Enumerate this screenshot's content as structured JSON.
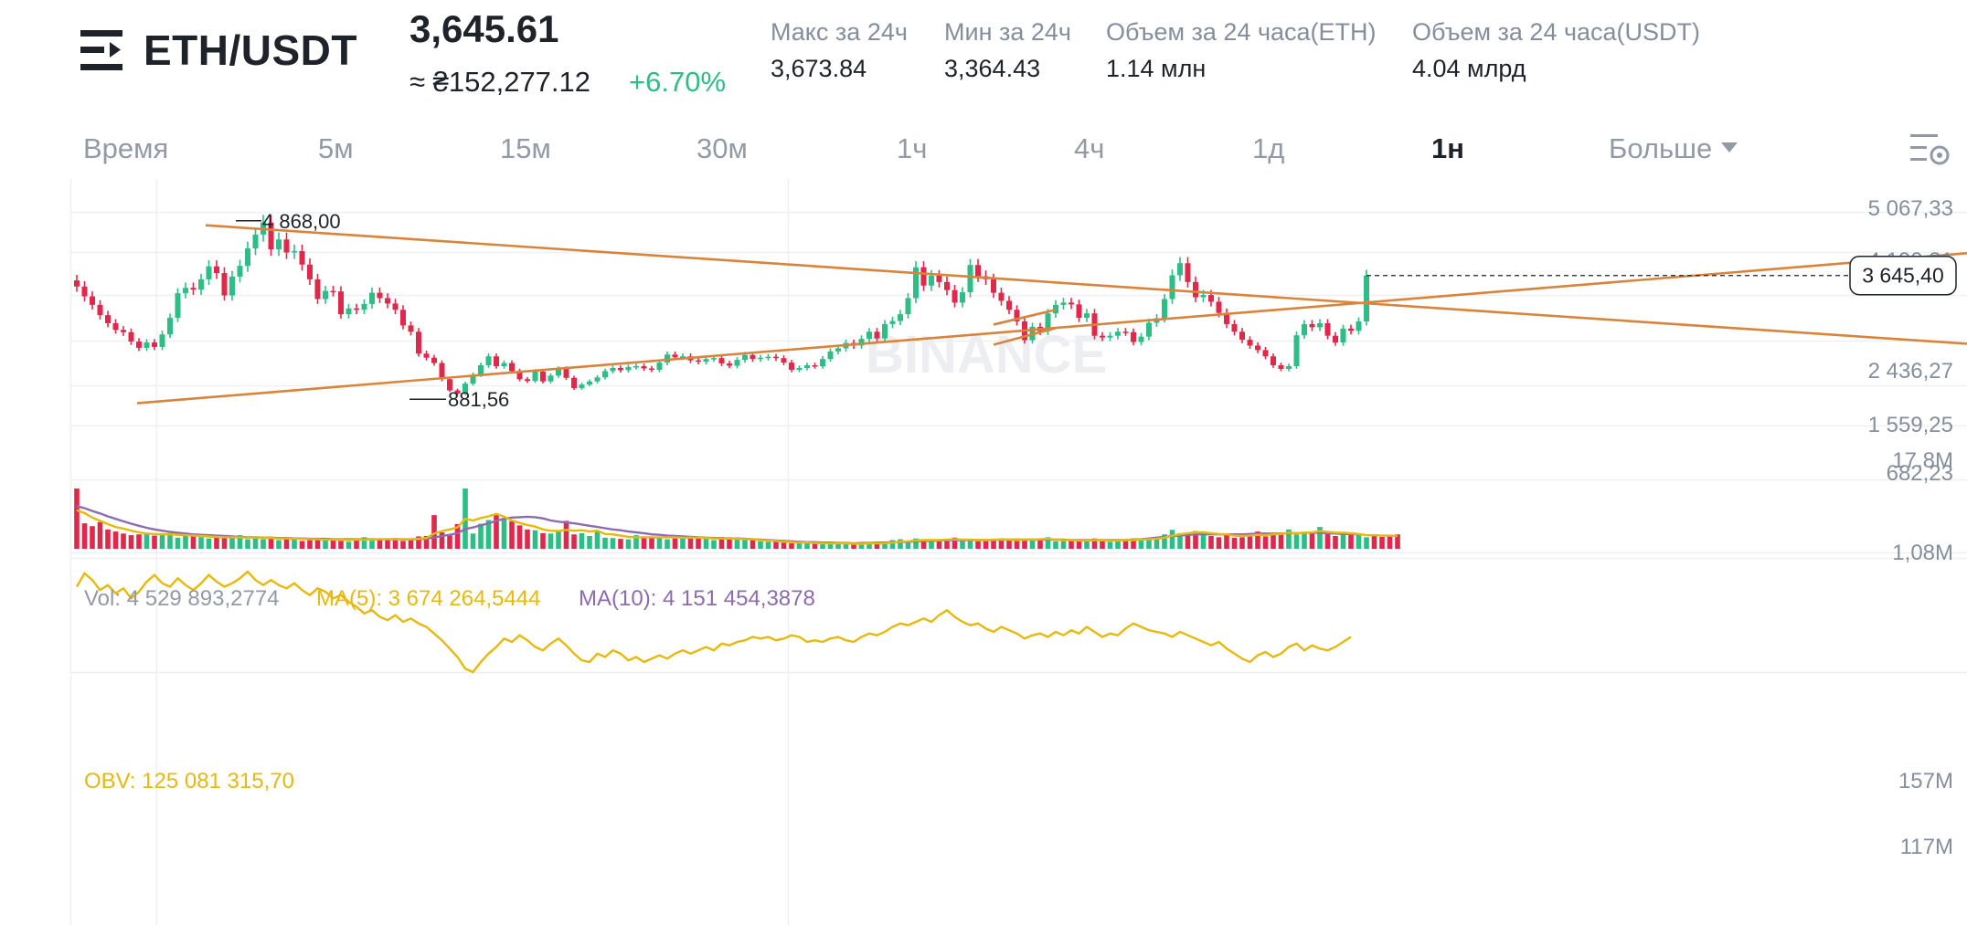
{
  "header": {
    "pair": "ETH/USDT",
    "price": "3,645.61",
    "approx_price": "≈ ₴152,277.12",
    "change": "+6.70%",
    "stats": [
      {
        "label": "Макс за 24ч",
        "value": "3,673.84"
      },
      {
        "label": "Мин за 24ч",
        "value": "3,364.43"
      },
      {
        "label": "Объем за 24 часа(ETH)",
        "value": "1.14 млн"
      },
      {
        "label": "Объем за 24 часа(USDT)",
        "value": "4.04 млрд"
      }
    ]
  },
  "timeframes": [
    "Время",
    "5м",
    "15м",
    "30м",
    "1ч",
    "4ч",
    "1д",
    "1н",
    "Больше"
  ],
  "active_timeframe": "1н",
  "colors": {
    "up": "#2ebd85",
    "down": "#e0294a",
    "trend": "#d9843b",
    "ma5": "#e6b90c",
    "ma10": "#8c6bb1",
    "obv": "#e6b90c"
  },
  "chart_data": [
    {
      "type": "candlestick",
      "title": "",
      "y_ticks": [
        "5 067,33",
        "4 190,31",
        "2 436,27",
        "1 559,25",
        "682,23"
      ],
      "ylim": [
        682.23,
        5067.33
      ],
      "current_price_label": "3 645,40",
      "annotations": [
        {
          "text": "4 868,00",
          "kind": "high"
        },
        {
          "text": "881,56",
          "kind": "low"
        }
      ],
      "watermark": "BINANCE",
      "trendlines": [
        {
          "name": "resistance",
          "points": [
            [
              8,
              4868
            ],
            [
              132,
              3420
            ]
          ]
        },
        {
          "name": "support",
          "points": [
            [
              0,
              682.23
            ],
            [
              132,
              2560
            ]
          ]
        },
        {
          "name": "channel-upper",
          "points": [
            [
              118,
              2550
            ],
            [
              126,
              2880
            ]
          ]
        },
        {
          "name": "channel-lower",
          "points": [
            [
              118,
              2100
            ],
            [
              126,
              2470
            ]
          ]
        }
      ],
      "closes": [
        3400,
        3180,
        2990,
        2760,
        2580,
        2430,
        2380,
        2170,
        2030,
        2150,
        2050,
        2330,
        2700,
        3250,
        3370,
        3330,
        3560,
        3850,
        3700,
        3200,
        3620,
        3860,
        4250,
        4560,
        4830,
        4230,
        4450,
        4160,
        4190,
        3890,
        3560,
        3120,
        3300,
        3290,
        2780,
        2910,
        2880,
        3010,
        3260,
        3140,
        3020,
        2880,
        2530,
        2390,
        1900,
        1810,
        1690,
        1330,
        1080,
        1010,
        1230,
        1430,
        1640,
        1840,
        1620,
        1690,
        1510,
        1330,
        1290,
        1500,
        1280,
        1410,
        1560,
        1360,
        1130,
        1210,
        1280,
        1370,
        1510,
        1580,
        1530,
        1600,
        1620,
        1570,
        1540,
        1700,
        1880,
        1820,
        1840,
        1750,
        1720,
        1780,
        1800,
        1680,
        1630,
        1760,
        1870,
        1780,
        1810,
        1830,
        1800,
        1700,
        1540,
        1580,
        1640,
        1620,
        1780,
        1950,
        2020,
        2140,
        2080,
        2230,
        2390,
        2240,
        2560,
        2630,
        2780,
        3140,
        3830,
        3420,
        3640,
        3500,
        3320,
        3040,
        3270,
        3880,
        3630,
        3560,
        3260,
        3080,
        2880,
        2620,
        2200,
        2500,
        2400,
        2800,
        2990,
        3040,
        3000,
        2700,
        2800,
        2300,
        2260,
        2300,
        2390,
        2380,
        2160,
        2280,
        2590,
        2690,
        3120,
        3650,
        3920,
        3500,
        3160,
        3210,
        3060,
        2810,
        2560,
        2390,
        2210,
        2080,
        1980,
        1840,
        1640,
        1560,
        1620,
        2310,
        2560,
        2490,
        2580,
        2300,
        2150,
        2460,
        2410,
        2620,
        3645.4
      ],
      "volume": {
        "ylim": [
          1.08,
          17.8
        ],
        "y_ticks": [
          "17,8M",
          "1,08M"
        ],
        "label": "Vol: 4 529 893,2774",
        "ma5_label": "MA(5): 3 674 264,5444",
        "ma10_label": "MA(10): 4 151 454,3878",
        "values": [
          15.8,
          7.3,
          6.6,
          7.6,
          5.8,
          5.3,
          4.8,
          4.4,
          4.6,
          4.9,
          4.3,
          4.6,
          4.9,
          3.8,
          4.2,
          4.1,
          3.9,
          3.6,
          3.8,
          3.9,
          4.2,
          4.4,
          3.4,
          3.6,
          3.4,
          3.6,
          3.2,
          3.8,
          3.4,
          3.0,
          3.3,
          3.2,
          3.1,
          3.5,
          3.0,
          2.8,
          3.6,
          3.9,
          3.2,
          3.4,
          3.2,
          3.7,
          3.0,
          3.6,
          4.1,
          4.2,
          9.3,
          5.1,
          4.6,
          7.1,
          15.8,
          4.8,
          7.2,
          8.1,
          9.4,
          8.6,
          7.8,
          6.8,
          5.8,
          5.6,
          4.9,
          4.8,
          5.3,
          7.9,
          4.6,
          4.9,
          4.2,
          5.6,
          3.8,
          3.7,
          3.5,
          3.4,
          4.4,
          4.1,
          4.1,
          3.8,
          3.4,
          3.6,
          3.8,
          4.2,
          4.0,
          3.5,
          3.2,
          3.5,
          3.9,
          3.4,
          3.2,
          3.2,
          2.9,
          2.8,
          2.9,
          2.6,
          2.4,
          2.6,
          2.5,
          2.3,
          2.2,
          2.6,
          2.4,
          2.2,
          2.3,
          2.4,
          2.6,
          2.5,
          2.4,
          3.2,
          3.4,
          3.0,
          3.6,
          3.2,
          3.1,
          3.0,
          3.3,
          3.8,
          3.1,
          3.0,
          2.9,
          3.3,
          3.4,
          3.6,
          3.1,
          3.2,
          3.4,
          3.1,
          3.6,
          3.9,
          2.9,
          3.1,
          3.0,
          2.9,
          3.4,
          3.6,
          2.9,
          2.8,
          3.3,
          3.2,
          3.6,
          3.4,
          3.7,
          3.5,
          4.6,
          5.7,
          4.9,
          4.8,
          5.4,
          4.6,
          4.2,
          3.9,
          4.7,
          3.8,
          3.9,
          4.8,
          5.3,
          4.1,
          4.8,
          4.7,
          5.8,
          4.6,
          5.2,
          4.9,
          6.4,
          4.7,
          4.2,
          5.1,
          4.8,
          4.4,
          3.9,
          4.2,
          4.0,
          4.1,
          4.6
        ],
        "ma5": [
          10.5,
          9.8,
          8.7,
          7.9,
          7.1,
          6.4,
          6.0,
          5.5,
          5.1,
          4.8,
          4.7,
          4.6,
          4.6,
          4.5,
          4.4,
          4.3,
          4.2,
          4.1,
          4.0,
          3.9,
          3.9,
          3.9,
          3.8,
          3.8,
          3.7,
          3.7,
          3.6,
          3.6,
          3.5,
          3.5,
          3.4,
          3.4,
          3.3,
          3.3,
          3.3,
          3.2,
          3.3,
          3.3,
          3.3,
          3.4,
          3.4,
          3.4,
          3.3,
          3.4,
          3.5,
          3.7,
          4.8,
          5.4,
          5.8,
          6.3,
          8.4,
          8.0,
          8.6,
          9.0,
          9.6,
          8.9,
          8.0,
          7.4,
          6.9,
          6.5,
          5.8,
          5.5,
          5.4,
          5.7,
          5.5,
          5.6,
          5.3,
          5.5,
          4.7,
          4.6,
          4.3,
          4.0,
          3.9,
          3.9,
          3.9,
          3.9,
          3.9,
          3.9,
          3.8,
          3.8,
          3.8,
          3.7,
          3.6,
          3.6,
          3.6,
          3.5,
          3.4,
          3.4,
          3.2,
          3.1,
          3.0,
          2.8,
          2.7,
          2.6,
          2.6,
          2.5,
          2.4,
          2.4,
          2.4,
          2.4,
          2.3,
          2.3,
          2.4,
          2.4,
          2.4,
          2.6,
          2.8,
          2.9,
          3.1,
          3.2,
          3.2,
          3.2,
          3.3,
          3.4,
          3.3,
          3.3,
          3.2,
          3.2,
          3.3,
          3.3,
          3.3,
          3.2,
          3.3,
          3.3,
          3.4,
          3.5,
          3.3,
          3.2,
          3.2,
          3.1,
          3.1,
          3.2,
          3.2,
          3.1,
          3.1,
          3.2,
          3.2,
          3.3,
          3.4,
          3.5,
          3.8,
          4.3,
          4.6,
          4.9,
          5.1,
          5.1,
          4.9,
          4.7,
          4.6,
          4.3,
          4.2,
          4.3,
          4.5,
          4.4,
          4.6,
          4.7,
          5.0,
          4.9,
          5.0,
          5.1,
          5.4,
          5.2,
          5.0,
          5.0,
          4.9,
          4.7,
          4.4,
          4.4,
          4.3,
          4.3,
          4.2
        ],
        "ma10": [
          11.5,
          11.0,
          10.3,
          9.7,
          9.0,
          8.4,
          7.8,
          7.2,
          6.7,
          6.2,
          5.8,
          5.5,
          5.2,
          5.0,
          4.8,
          4.6,
          4.5,
          4.4,
          4.3,
          4.2,
          4.1,
          4.0,
          3.9,
          3.9,
          3.8,
          3.8,
          3.7,
          3.7,
          3.6,
          3.6,
          3.5,
          3.5,
          3.5,
          3.4,
          3.4,
          3.4,
          3.4,
          3.4,
          3.4,
          3.4,
          3.4,
          3.4,
          3.4,
          3.4,
          3.4,
          3.5,
          3.9,
          4.2,
          4.5,
          4.9,
          5.9,
          6.3,
          6.8,
          7.3,
          7.9,
          8.4,
          8.7,
          8.8,
          8.9,
          8.8,
          8.5,
          8.0,
          7.7,
          7.5,
          7.3,
          7.0,
          6.7,
          6.4,
          6.1,
          5.8,
          5.6,
          5.3,
          5.1,
          4.9,
          4.6,
          4.5,
          4.3,
          4.2,
          4.1,
          4.0,
          3.9,
          3.8,
          3.7,
          3.7,
          3.6,
          3.6,
          3.5,
          3.4,
          3.3,
          3.2,
          3.1,
          3.0,
          2.9,
          2.8,
          2.7,
          2.7,
          2.6,
          2.6,
          2.5,
          2.5,
          2.4,
          2.5,
          2.5,
          2.6,
          2.6,
          2.7,
          2.7,
          2.8,
          2.9,
          3.0,
          3.0,
          3.1,
          3.2,
          3.2,
          3.2,
          3.2,
          3.2,
          3.2,
          3.2,
          3.3,
          3.3,
          3.3,
          3.3,
          3.3,
          3.3,
          3.3,
          3.3,
          3.3,
          3.2,
          3.2,
          3.2,
          3.2,
          3.2,
          3.2,
          3.2,
          3.2,
          3.3,
          3.4,
          3.6,
          3.8,
          4.0,
          4.2,
          4.3,
          4.5,
          4.6,
          4.6,
          4.6,
          4.6,
          4.6,
          4.6,
          4.6,
          4.7,
          4.8,
          4.8,
          4.8,
          4.8,
          4.9,
          4.9,
          5.0,
          5.0,
          5.0,
          4.9,
          4.8,
          4.7,
          4.7,
          4.6
        ]
      },
      "obv": {
        "label": "OBV: 125 081 315,70",
        "ylim": [
          97,
          157
        ],
        "y_ticks": [
          "157M",
          "117M"
        ],
        "values": [
          148,
          156,
          152,
          146,
          149,
          144,
          147,
          141,
          145,
          151,
          155,
          150,
          148,
          153,
          149,
          146,
          150,
          155,
          151,
          148,
          150,
          153,
          157,
          152,
          149,
          152,
          149,
          147,
          150,
          146,
          143,
          147,
          145,
          141,
          143,
          139,
          136,
          132,
          134,
          130,
          128,
          131,
          127,
          129,
          126,
          124,
          120,
          116,
          111,
          106,
          99,
          97,
          103,
          108,
          112,
          117,
          115,
          119,
          116,
          112,
          110,
          114,
          117,
          113,
          108,
          104,
          103,
          108,
          106,
          110,
          108,
          104,
          106,
          103,
          105,
          107,
          105,
          108,
          110,
          108,
          110,
          112,
          110,
          114,
          113,
          115,
          116,
          118,
          117,
          118,
          116,
          117,
          119,
          118,
          115,
          116,
          115,
          117,
          118,
          116,
          115,
          118,
          120,
          119,
          121,
          124,
          126,
          125,
          127,
          129,
          127,
          131,
          134,
          130,
          127,
          125,
          126,
          123,
          121,
          124,
          122,
          120,
          117,
          119,
          120,
          118,
          121,
          119,
          122,
          120,
          124,
          121,
          118,
          120,
          119,
          123,
          126,
          124,
          122,
          121,
          120,
          118,
          121,
          119,
          117,
          115,
          113,
          115,
          111,
          108,
          105,
          103,
          107,
          109,
          106,
          108,
          112,
          114,
          110,
          113,
          111,
          110,
          112,
          115,
          118
        ]
      }
    }
  ]
}
